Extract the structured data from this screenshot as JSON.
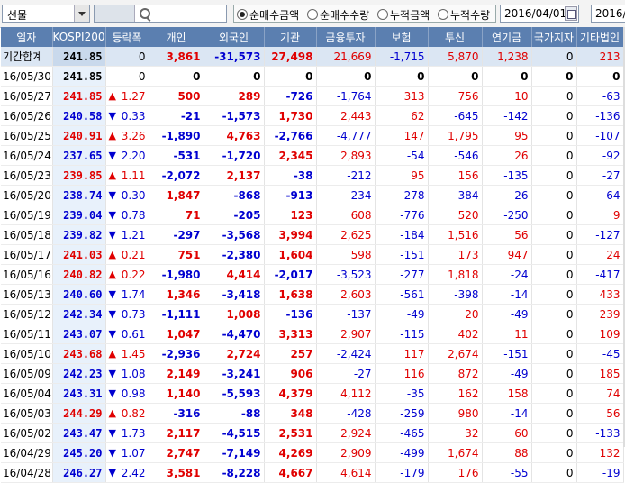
{
  "toolbar": {
    "market_select": "선물",
    "radio_options": [
      "순매수금액",
      "순매수수량",
      "누적금액",
      "누적수량"
    ],
    "radio_selected": 0,
    "date_from": "2016/04/01",
    "date_separator": "-",
    "date_to": "2016/0"
  },
  "columns": [
    "일자",
    "KOSPI200",
    "등락폭",
    "개인",
    "외국인",
    "기관",
    "금융투자",
    "보험",
    "투신",
    "연기금",
    "국가지자",
    "기타법인"
  ],
  "rows": [
    {
      "date": "기간합계",
      "k200": "241.85",
      "dir": "",
      "chg": "0",
      "ind": "3,861",
      "frn": "-31,573",
      "inst": "27,498",
      "fin": "21,669",
      "ins": "-1,715",
      "inv": "5,870",
      "pen": "1,238",
      "gov": "0",
      "etc": "213",
      "k200c": "black"
    },
    {
      "date": "16/05/30",
      "k200": "241.85",
      "dir": "",
      "chg": "0",
      "ind": "0",
      "frn": "0",
      "inst": "0",
      "fin": "0",
      "ins": "0",
      "inv": "0",
      "pen": "0",
      "gov": "0",
      "etc": "0",
      "k200c": "black"
    },
    {
      "date": "16/05/27",
      "k200": "241.85",
      "dir": "up",
      "chg": "1.27",
      "ind": "500",
      "frn": "289",
      "inst": "-726",
      "fin": "-1,764",
      "ins": "313",
      "inv": "756",
      "pen": "10",
      "gov": "0",
      "etc": "-63",
      "k200c": "red"
    },
    {
      "date": "16/05/26",
      "k200": "240.58",
      "dir": "down",
      "chg": "0.33",
      "ind": "-21",
      "frn": "-1,573",
      "inst": "1,730",
      "fin": "2,443",
      "ins": "62",
      "inv": "-645",
      "pen": "-142",
      "gov": "0",
      "etc": "-136",
      "k200c": "blue"
    },
    {
      "date": "16/05/25",
      "k200": "240.91",
      "dir": "up",
      "chg": "3.26",
      "ind": "-1,890",
      "frn": "4,763",
      "inst": "-2,766",
      "fin": "-4,777",
      "ins": "147",
      "inv": "1,795",
      "pen": "95",
      "gov": "0",
      "etc": "-107",
      "k200c": "red"
    },
    {
      "date": "16/05/24",
      "k200": "237.65",
      "dir": "down",
      "chg": "2.20",
      "ind": "-531",
      "frn": "-1,720",
      "inst": "2,345",
      "fin": "2,893",
      "ins": "-54",
      "inv": "-546",
      "pen": "26",
      "gov": "0",
      "etc": "-92",
      "k200c": "blue"
    },
    {
      "date": "16/05/23",
      "k200": "239.85",
      "dir": "up",
      "chg": "1.11",
      "ind": "-2,072",
      "frn": "2,137",
      "inst": "-38",
      "fin": "-212",
      "ins": "95",
      "inv": "156",
      "pen": "-135",
      "gov": "0",
      "etc": "-27",
      "k200c": "red"
    },
    {
      "date": "16/05/20",
      "k200": "238.74",
      "dir": "down",
      "chg": "0.30",
      "ind": "1,847",
      "frn": "-868",
      "inst": "-913",
      "fin": "-234",
      "ins": "-278",
      "inv": "-384",
      "pen": "-26",
      "gov": "0",
      "etc": "-64",
      "k200c": "blue"
    },
    {
      "date": "16/05/19",
      "k200": "239.04",
      "dir": "down",
      "chg": "0.78",
      "ind": "71",
      "frn": "-205",
      "inst": "123",
      "fin": "608",
      "ins": "-776",
      "inv": "520",
      "pen": "-250",
      "gov": "0",
      "etc": "9",
      "k200c": "blue"
    },
    {
      "date": "16/05/18",
      "k200": "239.82",
      "dir": "down",
      "chg": "1.21",
      "ind": "-297",
      "frn": "-3,568",
      "inst": "3,994",
      "fin": "2,625",
      "ins": "-184",
      "inv": "1,516",
      "pen": "56",
      "gov": "0",
      "etc": "-127",
      "k200c": "blue"
    },
    {
      "date": "16/05/17",
      "k200": "241.03",
      "dir": "up",
      "chg": "0.21",
      "ind": "751",
      "frn": "-2,380",
      "inst": "1,604",
      "fin": "598",
      "ins": "-151",
      "inv": "173",
      "pen": "947",
      "gov": "0",
      "etc": "24",
      "k200c": "red"
    },
    {
      "date": "16/05/16",
      "k200": "240.82",
      "dir": "up",
      "chg": "0.22",
      "ind": "-1,980",
      "frn": "4,414",
      "inst": "-2,017",
      "fin": "-3,523",
      "ins": "-277",
      "inv": "1,818",
      "pen": "-24",
      "gov": "0",
      "etc": "-417",
      "k200c": "red"
    },
    {
      "date": "16/05/13",
      "k200": "240.60",
      "dir": "down",
      "chg": "1.74",
      "ind": "1,346",
      "frn": "-3,418",
      "inst": "1,638",
      "fin": "2,603",
      "ins": "-561",
      "inv": "-398",
      "pen": "-14",
      "gov": "0",
      "etc": "433",
      "k200c": "blue"
    },
    {
      "date": "16/05/12",
      "k200": "242.34",
      "dir": "down",
      "chg": "0.73",
      "ind": "-1,111",
      "frn": "1,008",
      "inst": "-136",
      "fin": "-137",
      "ins": "-49",
      "inv": "20",
      "pen": "-49",
      "gov": "0",
      "etc": "239",
      "k200c": "blue"
    },
    {
      "date": "16/05/11",
      "k200": "243.07",
      "dir": "down",
      "chg": "0.61",
      "ind": "1,047",
      "frn": "-4,470",
      "inst": "3,313",
      "fin": "2,907",
      "ins": "-115",
      "inv": "402",
      "pen": "11",
      "gov": "0",
      "etc": "109",
      "k200c": "blue"
    },
    {
      "date": "16/05/10",
      "k200": "243.68",
      "dir": "up",
      "chg": "1.45",
      "ind": "-2,936",
      "frn": "2,724",
      "inst": "257",
      "fin": "-2,424",
      "ins": "117",
      "inv": "2,674",
      "pen": "-151",
      "gov": "0",
      "etc": "-45",
      "k200c": "red"
    },
    {
      "date": "16/05/09",
      "k200": "242.23",
      "dir": "down",
      "chg": "1.08",
      "ind": "2,149",
      "frn": "-3,241",
      "inst": "906",
      "fin": "-27",
      "ins": "116",
      "inv": "872",
      "pen": "-49",
      "gov": "0",
      "etc": "185",
      "k200c": "blue"
    },
    {
      "date": "16/05/04",
      "k200": "243.31",
      "dir": "down",
      "chg": "0.98",
      "ind": "1,140",
      "frn": "-5,593",
      "inst": "4,379",
      "fin": "4,112",
      "ins": "-35",
      "inv": "162",
      "pen": "158",
      "gov": "0",
      "etc": "74",
      "k200c": "blue"
    },
    {
      "date": "16/05/03",
      "k200": "244.29",
      "dir": "up",
      "chg": "0.82",
      "ind": "-316",
      "frn": "-88",
      "inst": "348",
      "fin": "-428",
      "ins": "-259",
      "inv": "980",
      "pen": "-14",
      "gov": "0",
      "etc": "56",
      "k200c": "red"
    },
    {
      "date": "16/05/02",
      "k200": "243.47",
      "dir": "down",
      "chg": "1.73",
      "ind": "2,117",
      "frn": "-4,515",
      "inst": "2,531",
      "fin": "2,924",
      "ins": "-465",
      "inv": "32",
      "pen": "60",
      "gov": "0",
      "etc": "-133",
      "k200c": "blue"
    },
    {
      "date": "16/04/29",
      "k200": "245.20",
      "dir": "down",
      "chg": "1.07",
      "ind": "2,747",
      "frn": "-7,149",
      "inst": "4,269",
      "fin": "2,909",
      "ins": "-499",
      "inv": "1,674",
      "pen": "88",
      "gov": "0",
      "etc": "132",
      "k200c": "blue"
    },
    {
      "date": "16/04/28",
      "k200": "246.27",
      "dir": "down",
      "chg": "2.42",
      "ind": "3,581",
      "frn": "-8,228",
      "inst": "4,667",
      "fin": "4,614",
      "ins": "-179",
      "inv": "176",
      "pen": "-55",
      "gov": "0",
      "etc": "-19",
      "k200c": "blue"
    }
  ]
}
